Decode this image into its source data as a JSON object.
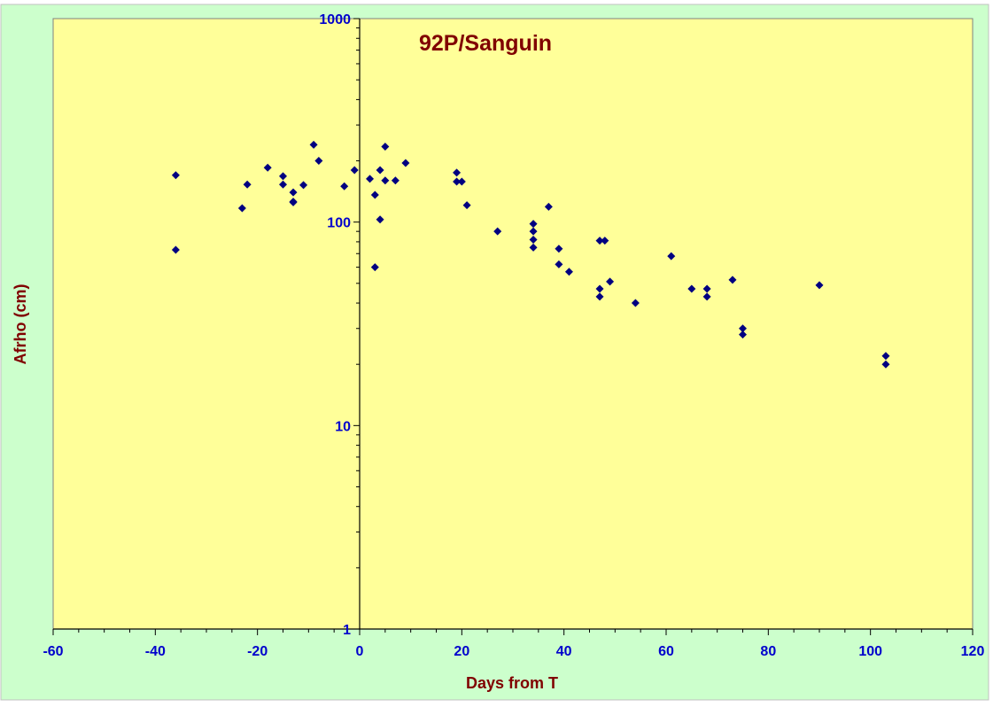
{
  "colors": {
    "outer_background": "#ccffcc",
    "plot_background": "#ffff99",
    "marker": "#000080",
    "tick_label": "#0000cc",
    "title": "#800000",
    "axis_title": "#800000"
  },
  "chart_data": {
    "type": "scatter",
    "title": "92P/Sanguin",
    "xlabel": "Days from T",
    "ylabel": "Afrho (cm)",
    "xlim": [
      -60,
      120
    ],
    "ylim": [
      1,
      1000
    ],
    "y_scale": "log",
    "grid": false,
    "legend": "none",
    "marker": "diamond",
    "x_ticks": [
      "-60",
      "-40",
      "-20",
      "0",
      "20",
      "40",
      "60",
      "80",
      "100",
      "120"
    ],
    "y_ticks": [
      "1",
      "10",
      "100",
      "1000"
    ],
    "series": [
      {
        "points": [
          [
            -36,
            170
          ],
          [
            -36,
            73
          ],
          [
            -23,
            117
          ],
          [
            -22,
            153
          ],
          [
            -18,
            185
          ],
          [
            -15,
            168
          ],
          [
            -15,
            153
          ],
          [
            -13,
            140
          ],
          [
            -13,
            125
          ],
          [
            -13,
            126
          ],
          [
            -11,
            152
          ],
          [
            -9,
            240
          ],
          [
            -8,
            200
          ],
          [
            -3,
            150
          ],
          [
            -1,
            180
          ],
          [
            2,
            163
          ],
          [
            3,
            136
          ],
          [
            3,
            60
          ],
          [
            4,
            180
          ],
          [
            4,
            103
          ],
          [
            5,
            235
          ],
          [
            5,
            160
          ],
          [
            7,
            160
          ],
          [
            9,
            195
          ],
          [
            19,
            175
          ],
          [
            19,
            158
          ],
          [
            20,
            158
          ],
          [
            21,
            121
          ],
          [
            27,
            90
          ],
          [
            34,
            98
          ],
          [
            34,
            90
          ],
          [
            34,
            82
          ],
          [
            34,
            75
          ],
          [
            37,
            119
          ],
          [
            39,
            74
          ],
          [
            39,
            62
          ],
          [
            41,
            57
          ],
          [
            47,
            81
          ],
          [
            47,
            47
          ],
          [
            47,
            43
          ],
          [
            48,
            81
          ],
          [
            49,
            51
          ],
          [
            54,
            40
          ],
          [
            61,
            68
          ],
          [
            65,
            47
          ],
          [
            68,
            47
          ],
          [
            68,
            43
          ],
          [
            73,
            52
          ],
          [
            75,
            30
          ],
          [
            75,
            28
          ],
          [
            90,
            49
          ],
          [
            103,
            22
          ],
          [
            103,
            20
          ]
        ]
      }
    ]
  }
}
